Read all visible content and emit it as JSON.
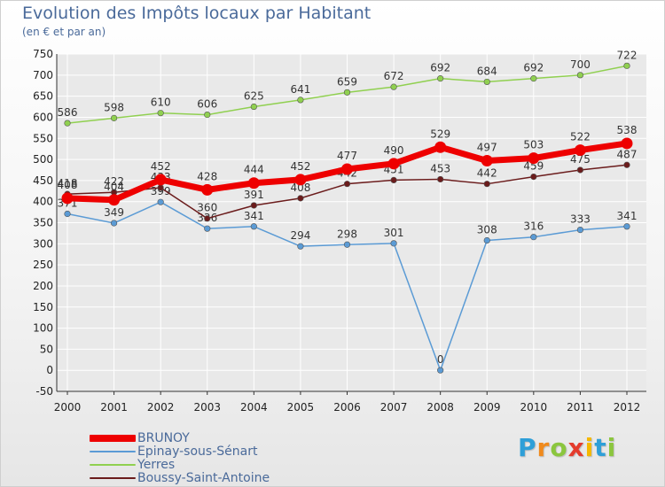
{
  "colors": {
    "title": "#4a6a9a",
    "axis": "#333333",
    "grid": "#ffffff",
    "plot_bg": "#e9e9e9"
  },
  "chart_data": {
    "type": "line",
    "title": "Evolution des Impôts locaux par Habitant",
    "subtitle": "(en € et par an)",
    "xlabel": "",
    "ylabel": "",
    "x": [
      "2000",
      "2001",
      "2002",
      "2003",
      "2004",
      "2005",
      "2006",
      "2007",
      "2008",
      "2009",
      "2010",
      "2011",
      "2012"
    ],
    "ylim": [
      -50,
      750
    ],
    "yticks": [
      -50,
      0,
      50,
      100,
      150,
      200,
      250,
      300,
      350,
      400,
      450,
      500,
      550,
      600,
      650,
      700,
      750
    ],
    "grid": true,
    "legend_position": "bottom-left",
    "series": [
      {
        "name": "Yerres",
        "color": "#90d050",
        "width": "thin",
        "values": [
          586,
          598,
          610,
          606,
          625,
          641,
          659,
          672,
          692,
          684,
          692,
          700,
          722
        ]
      },
      {
        "name": "Epinay-sous-Sénart",
        "color": "#5b9bd5",
        "width": "thin",
        "values": [
          371,
          349,
          399,
          336,
          341,
          294,
          298,
          301,
          0,
          308,
          316,
          333,
          341
        ]
      },
      {
        "name": "Boussy-Saint-Antoine",
        "color": "#6b1c1c",
        "width": "thin",
        "values": [
          418,
          422,
          433,
          360,
          391,
          408,
          442,
          451,
          453,
          442,
          459,
          475,
          487
        ]
      },
      {
        "name": "BRUNOY",
        "color": "#ee0000",
        "width": "thick",
        "values": [
          408,
          404,
          452,
          428,
          444,
          452,
          477,
          490,
          529,
          497,
          503,
          522,
          538
        ]
      }
    ],
    "legend_order": [
      "BRUNOY",
      "Epinay-sous-Sénart",
      "Yerres",
      "Boussy-Saint-Antoine"
    ]
  },
  "logo": {
    "letters": [
      "P",
      "r",
      "o",
      "x",
      "i",
      "t",
      "i"
    ],
    "colors": [
      "#2e9fd8",
      "#f08a1c",
      "#8bc63e",
      "#e43b2c",
      "#f5b800",
      "#2e9fd8",
      "#8bc63e"
    ]
  }
}
